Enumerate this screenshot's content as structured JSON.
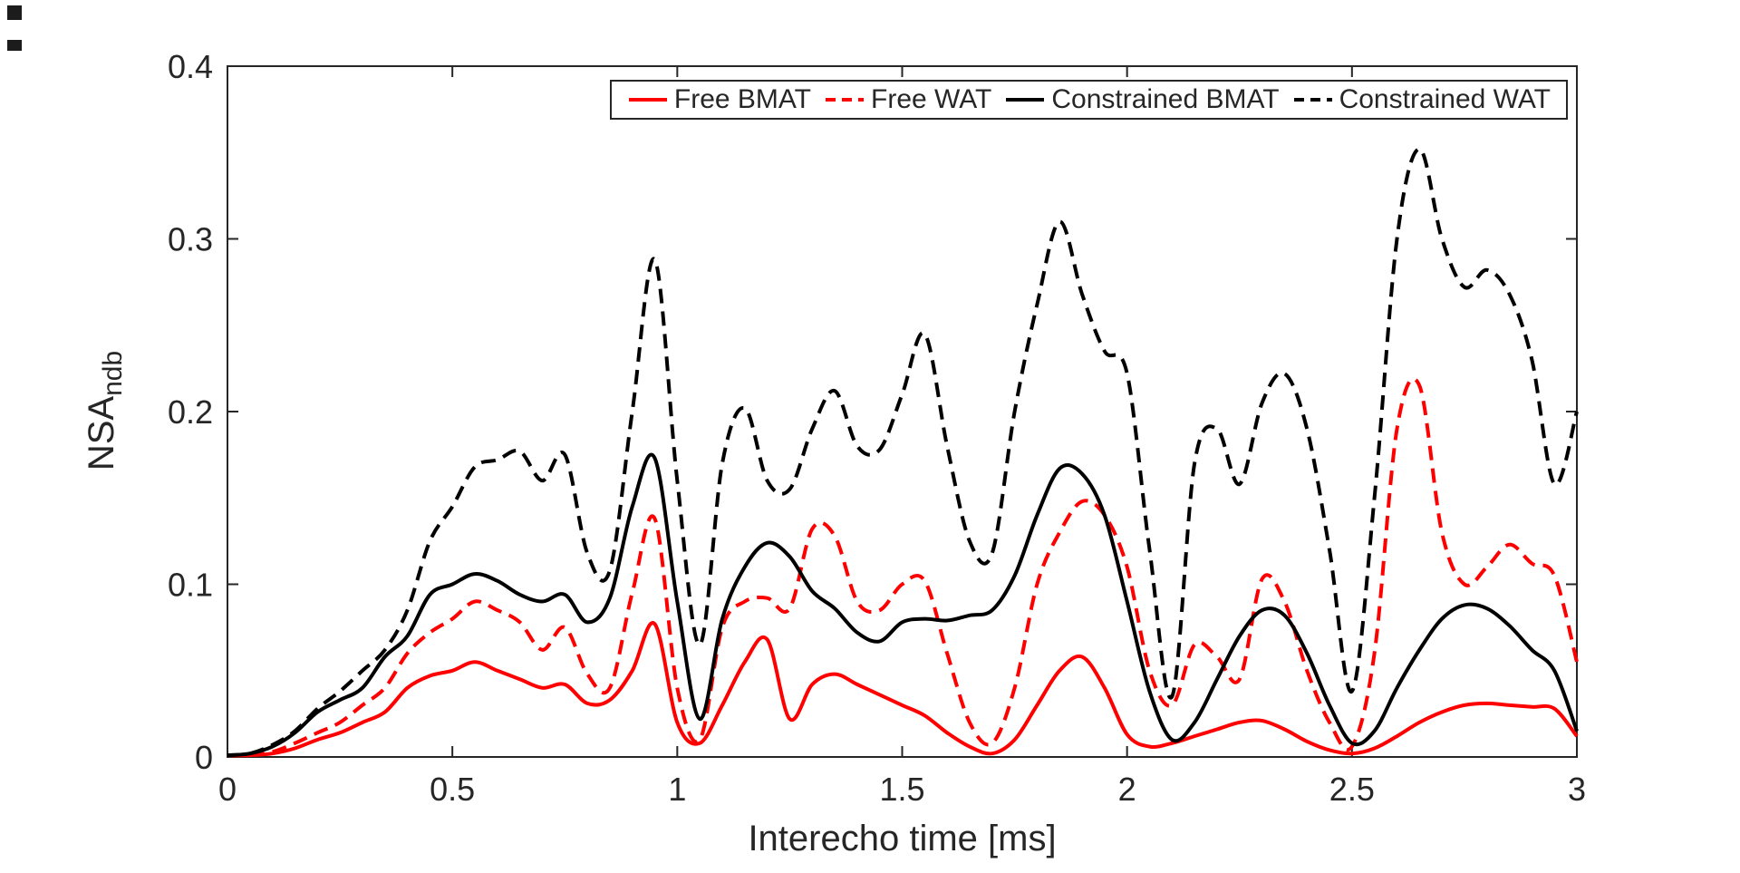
{
  "figure": {
    "background": "#ffffff",
    "axis_color": "#262626"
  },
  "chart_data": {
    "type": "line",
    "title": "",
    "xlabel": "Interecho time [ms]",
    "ylabel": "NSA",
    "ylabel_subscript": "ndb",
    "xlim": [
      0,
      3
    ],
    "ylim": [
      0,
      0.4
    ],
    "xticks": [
      0,
      0.5,
      1,
      1.5,
      2,
      2.5,
      3
    ],
    "xtick_labels": [
      "0",
      "0.5",
      "1",
      "1.5",
      "2",
      "2.5",
      "3"
    ],
    "yticks": [
      0,
      0.1,
      0.2,
      0.3,
      0.4
    ],
    "ytick_labels": [
      "0",
      "0.1",
      "0.2",
      "0.3",
      "0.4"
    ],
    "grid": false,
    "legend_position": "top-inside-horizontal",
    "axis_color": "#262626",
    "x": [
      0,
      0.05,
      0.1,
      0.15,
      0.2,
      0.25,
      0.3,
      0.35,
      0.4,
      0.45,
      0.5,
      0.55,
      0.6,
      0.65,
      0.7,
      0.75,
      0.8,
      0.85,
      0.9,
      0.95,
      1,
      1.05,
      1.1,
      1.15,
      1.2,
      1.25,
      1.3,
      1.35,
      1.4,
      1.45,
      1.5,
      1.55,
      1.6,
      1.65,
      1.7,
      1.75,
      1.8,
      1.85,
      1.9,
      1.95,
      2,
      2.05,
      2.1,
      2.15,
      2.2,
      2.25,
      2.3,
      2.35,
      2.4,
      2.45,
      2.5,
      2.55,
      2.6,
      2.65,
      2.7,
      2.75,
      2.8,
      2.85,
      2.9,
      2.95,
      3
    ],
    "series": [
      {
        "name": "Free BMAT",
        "color": "#ff0000",
        "style": "solid",
        "values": [
          0.001,
          0.001,
          0.002,
          0.005,
          0.01,
          0.014,
          0.02,
          0.026,
          0.04,
          0.047,
          0.05,
          0.055,
          0.05,
          0.045,
          0.04,
          0.042,
          0.031,
          0.033,
          0.05,
          0.077,
          0.02,
          0.008,
          0.03,
          0.055,
          0.068,
          0.022,
          0.042,
          0.048,
          0.042,
          0.036,
          0.03,
          0.024,
          0.014,
          0.006,
          0.002,
          0.01,
          0.03,
          0.05,
          0.058,
          0.04,
          0.013,
          0.006,
          0.008,
          0.012,
          0.016,
          0.02,
          0.021,
          0.016,
          0.009,
          0.004,
          0.002,
          0.005,
          0.012,
          0.02,
          0.026,
          0.03,
          0.031,
          0.03,
          0.029,
          0.028,
          0.012
        ]
      },
      {
        "name": "Free WAT",
        "color": "#ff0000",
        "style": "dashed",
        "values": [
          0.001,
          0.001,
          0.003,
          0.008,
          0.014,
          0.02,
          0.03,
          0.04,
          0.06,
          0.072,
          0.08,
          0.09,
          0.085,
          0.078,
          0.062,
          0.075,
          0.048,
          0.04,
          0.095,
          0.138,
          0.04,
          0.01,
          0.075,
          0.09,
          0.092,
          0.086,
          0.132,
          0.128,
          0.09,
          0.085,
          0.1,
          0.102,
          0.06,
          0.02,
          0.008,
          0.04,
          0.1,
          0.13,
          0.148,
          0.14,
          0.11,
          0.05,
          0.03,
          0.065,
          0.058,
          0.045,
          0.103,
          0.09,
          0.05,
          0.02,
          0.006,
          0.06,
          0.19,
          0.215,
          0.13,
          0.1,
          0.11,
          0.123,
          0.112,
          0.105,
          0.055
        ]
      },
      {
        "name": "Constrained BMAT",
        "color": "#000000",
        "style": "solid",
        "values": [
          0.001,
          0.002,
          0.006,
          0.014,
          0.026,
          0.033,
          0.04,
          0.058,
          0.07,
          0.094,
          0.1,
          0.106,
          0.102,
          0.094,
          0.09,
          0.094,
          0.078,
          0.092,
          0.145,
          0.173,
          0.09,
          0.022,
          0.08,
          0.11,
          0.124,
          0.116,
          0.096,
          0.086,
          0.072,
          0.067,
          0.078,
          0.08,
          0.079,
          0.082,
          0.085,
          0.105,
          0.14,
          0.167,
          0.164,
          0.14,
          0.09,
          0.038,
          0.01,
          0.02,
          0.045,
          0.07,
          0.085,
          0.082,
          0.06,
          0.03,
          0.008,
          0.015,
          0.04,
          0.062,
          0.08,
          0.088,
          0.086,
          0.076,
          0.062,
          0.05,
          0.015
        ]
      },
      {
        "name": "Constrained WAT",
        "color": "#000000",
        "style": "dashed",
        "values": [
          0.001,
          0.002,
          0.007,
          0.015,
          0.028,
          0.038,
          0.05,
          0.062,
          0.085,
          0.125,
          0.145,
          0.168,
          0.172,
          0.177,
          0.16,
          0.175,
          0.118,
          0.108,
          0.2,
          0.288,
          0.16,
          0.065,
          0.17,
          0.202,
          0.16,
          0.155,
          0.19,
          0.212,
          0.18,
          0.178,
          0.21,
          0.245,
          0.18,
          0.125,
          0.118,
          0.2,
          0.262,
          0.31,
          0.268,
          0.235,
          0.222,
          0.12,
          0.035,
          0.17,
          0.19,
          0.158,
          0.205,
          0.222,
          0.19,
          0.12,
          0.038,
          0.15,
          0.3,
          0.352,
          0.3,
          0.272,
          0.282,
          0.268,
          0.23,
          0.158,
          0.2
        ]
      }
    ]
  }
}
